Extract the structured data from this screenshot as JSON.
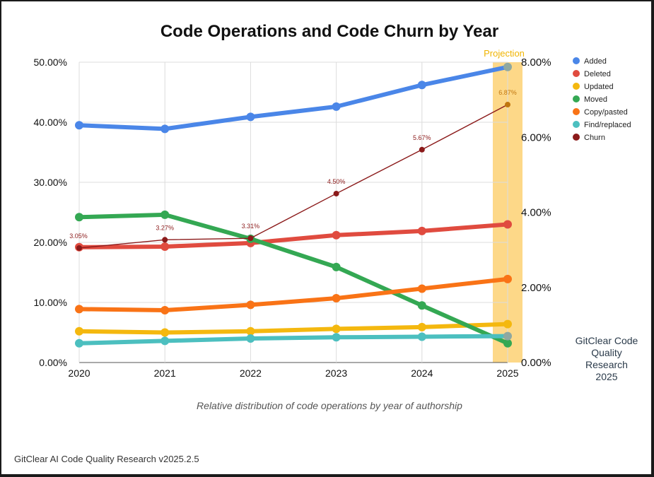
{
  "chart_data": {
    "type": "line",
    "title": "Code Operations and Code Churn by Year",
    "categories": [
      "2020",
      "2021",
      "2022",
      "2023",
      "2024",
      "2025"
    ],
    "y_left": {
      "range": [
        0,
        50
      ],
      "ticks": [
        "0.00%",
        "10.00%",
        "20.00%",
        "30.00%",
        "40.00%",
        "50.00%"
      ]
    },
    "y_right": {
      "range": [
        0,
        8
      ],
      "ticks": [
        "0.00%",
        "2.00%",
        "4.00%",
        "6.00%",
        "8.00%"
      ]
    },
    "grid": true,
    "legend_position": "right",
    "projection": {
      "label": "Projection",
      "category": "2025",
      "color": "#fdd888"
    },
    "series": [
      {
        "name": "Added",
        "axis": "left",
        "color": "#4a86e8",
        "values": [
          39.5,
          38.9,
          40.9,
          42.6,
          46.2,
          49.2
        ]
      },
      {
        "name": "Deleted",
        "axis": "left",
        "color": "#e04b3f",
        "values": [
          19.2,
          19.3,
          19.9,
          21.2,
          21.9,
          23.0
        ]
      },
      {
        "name": "Updated",
        "axis": "left",
        "color": "#f4b80f",
        "values": [
          5.2,
          5.0,
          5.2,
          5.6,
          5.9,
          6.4
        ]
      },
      {
        "name": "Moved",
        "axis": "left",
        "color": "#34a853",
        "values": [
          24.2,
          24.6,
          20.6,
          15.9,
          9.5,
          3.2
        ]
      },
      {
        "name": "Copy/pasted",
        "axis": "left",
        "color": "#f97316",
        "values": [
          8.9,
          8.7,
          9.6,
          10.7,
          12.3,
          13.9
        ]
      },
      {
        "name": "Find/replaced",
        "axis": "left",
        "color": "#4cbfbf",
        "values": [
          3.2,
          3.6,
          4.0,
          4.2,
          4.3,
          4.4
        ]
      },
      {
        "name": "Churn",
        "axis": "right",
        "color": "#8b1a1a",
        "values": [
          3.05,
          3.27,
          3.31,
          4.5,
          5.67,
          6.87
        ],
        "labels": [
          "3.05%",
          "3.27%",
          "3.31%",
          "4.50%",
          "5.67%",
          "6.87%"
        ]
      }
    ]
  },
  "caption": "Relative distribution of code operations by year of authorship",
  "side_note": [
    "GitClear Code",
    "Quality",
    "Research",
    "2025"
  ],
  "footer": "GitClear AI Code Quality Research v2025.2.5"
}
